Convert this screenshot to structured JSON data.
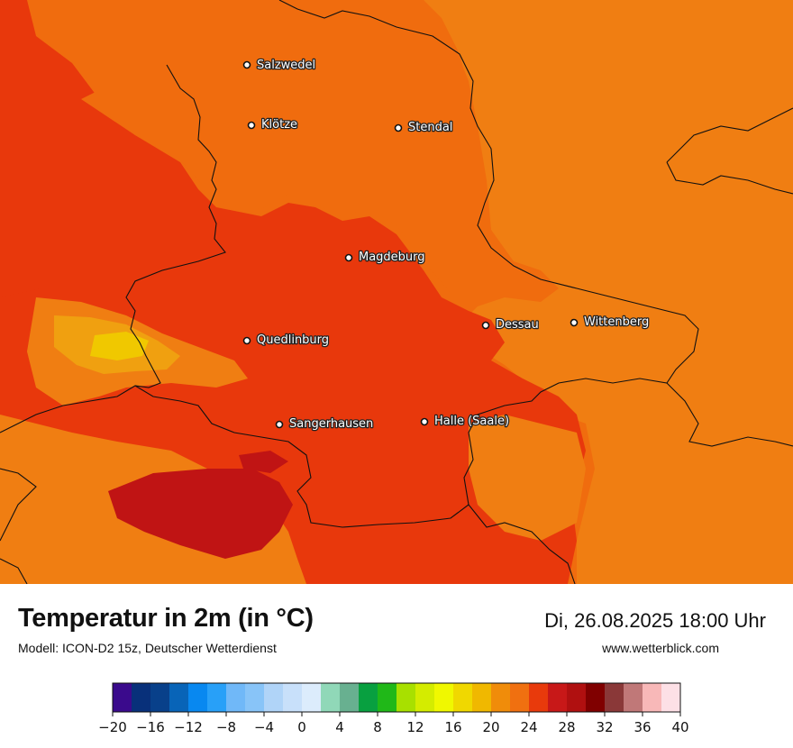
{
  "map": {
    "cities": [
      {
        "name": "Salzwedel"
      },
      {
        "name": "Klötze"
      },
      {
        "name": "Stendal"
      },
      {
        "name": "Magdeburg"
      },
      {
        "name": "Dessau"
      },
      {
        "name": "Wittenberg"
      },
      {
        "name": "Quedlinburg"
      },
      {
        "name": "Sangerhausen"
      },
      {
        "name": "Halle (Saale)"
      }
    ],
    "colors": {
      "t22": "#f07e12",
      "t24": "#e8380c",
      "t26": "#f06c0e",
      "t28": "#c01414",
      "t18": "#f0c800",
      "t20": "#f0a010",
      "border": "#111111"
    }
  },
  "footer": {
    "title": "Temperatur in 2m (in °C)",
    "model": "Modell: ICON-D2 15z, Deutscher Wetterdienst",
    "datetime": "Di, 26.08.2025 18:00 Uhr",
    "website": "www.wetterblick.com"
  },
  "legend": {
    "tick_labels": [
      "−20",
      "−16",
      "−12",
      "−8",
      "−4",
      "0",
      "4",
      "8",
      "12",
      "16",
      "20",
      "24",
      "28",
      "32",
      "36",
      "40"
    ],
    "colors": [
      "#3a0a8c",
      "#08307a",
      "#08408a",
      "#0864b8",
      "#0888f0",
      "#28a0f8",
      "#70b8f8",
      "#88c4f8",
      "#b0d4f8",
      "#c8e0fa",
      "#dcecfc",
      "#90d8b8",
      "#68b090",
      "#08a040",
      "#20b818",
      "#a8e000",
      "#d4ec00",
      "#f0f800",
      "#f0d800",
      "#f0b800",
      "#f08c0a",
      "#f07010",
      "#e83a0c",
      "#c81818",
      "#b01010",
      "#800000",
      "#8a3838",
      "#c07878",
      "#f8b8b8",
      "#fde0e6"
    ]
  }
}
